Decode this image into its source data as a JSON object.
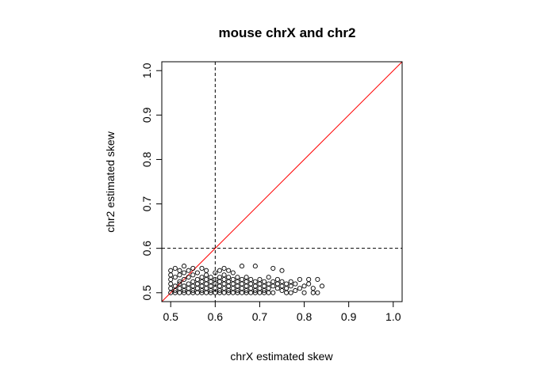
{
  "chart_data": {
    "type": "scatter",
    "title": "mouse chrX and chr2",
    "xlabel": "chrX estimated skew",
    "ylabel": "chr2 estimated skew",
    "xlim": [
      0.48,
      1.02
    ],
    "ylim": [
      0.48,
      1.02
    ],
    "x_ticks": [
      "0.5",
      "0.6",
      "0.7",
      "0.8",
      "0.9",
      "1.0"
    ],
    "y_ticks": [
      "0.5",
      "0.6",
      "0.7",
      "0.8",
      "0.9",
      "1.0"
    ],
    "grid": false,
    "marker": "open-circle",
    "colors": {
      "points": "#000000",
      "diagonal": "#ff0000",
      "reference": "#000000"
    },
    "reference_lines": [
      {
        "orientation": "vertical",
        "value": 0.6,
        "style": "dashed"
      },
      {
        "orientation": "horizontal",
        "value": 0.6,
        "style": "dashed"
      },
      {
        "orientation": "diagonal",
        "slope": 1,
        "intercept": 0,
        "style": "solid",
        "color": "#ff0000"
      }
    ],
    "points": [
      [
        0.5,
        0.5
      ],
      [
        0.5,
        0.51
      ],
      [
        0.5,
        0.52
      ],
      [
        0.5,
        0.53
      ],
      [
        0.5,
        0.54
      ],
      [
        0.5,
        0.55
      ],
      [
        0.51,
        0.5
      ],
      [
        0.51,
        0.505
      ],
      [
        0.51,
        0.515
      ],
      [
        0.51,
        0.535
      ],
      [
        0.51,
        0.555
      ],
      [
        0.52,
        0.5
      ],
      [
        0.52,
        0.51
      ],
      [
        0.52,
        0.52
      ],
      [
        0.52,
        0.525
      ],
      [
        0.52,
        0.54
      ],
      [
        0.52,
        0.55
      ],
      [
        0.53,
        0.5
      ],
      [
        0.53,
        0.505
      ],
      [
        0.53,
        0.515
      ],
      [
        0.53,
        0.53
      ],
      [
        0.53,
        0.545
      ],
      [
        0.53,
        0.56
      ],
      [
        0.54,
        0.5
      ],
      [
        0.54,
        0.51
      ],
      [
        0.54,
        0.52
      ],
      [
        0.54,
        0.535
      ],
      [
        0.54,
        0.55
      ],
      [
        0.55,
        0.5
      ],
      [
        0.55,
        0.505
      ],
      [
        0.55,
        0.515
      ],
      [
        0.55,
        0.525
      ],
      [
        0.55,
        0.54
      ],
      [
        0.55,
        0.555
      ],
      [
        0.56,
        0.5
      ],
      [
        0.56,
        0.51
      ],
      [
        0.56,
        0.52
      ],
      [
        0.56,
        0.53
      ],
      [
        0.56,
        0.545
      ],
      [
        0.57,
        0.5
      ],
      [
        0.57,
        0.505
      ],
      [
        0.57,
        0.515
      ],
      [
        0.57,
        0.525
      ],
      [
        0.57,
        0.535
      ],
      [
        0.57,
        0.555
      ],
      [
        0.58,
        0.5
      ],
      [
        0.58,
        0.51
      ],
      [
        0.58,
        0.52
      ],
      [
        0.58,
        0.53
      ],
      [
        0.58,
        0.54
      ],
      [
        0.58,
        0.55
      ],
      [
        0.59,
        0.5
      ],
      [
        0.59,
        0.505
      ],
      [
        0.59,
        0.515
      ],
      [
        0.59,
        0.525
      ],
      [
        0.59,
        0.535
      ],
      [
        0.6,
        0.5
      ],
      [
        0.6,
        0.51
      ],
      [
        0.6,
        0.52
      ],
      [
        0.6,
        0.53
      ],
      [
        0.6,
        0.545
      ],
      [
        0.61,
        0.5
      ],
      [
        0.61,
        0.505
      ],
      [
        0.61,
        0.515
      ],
      [
        0.61,
        0.525
      ],
      [
        0.61,
        0.535
      ],
      [
        0.61,
        0.55
      ],
      [
        0.62,
        0.5
      ],
      [
        0.62,
        0.51
      ],
      [
        0.62,
        0.52
      ],
      [
        0.62,
        0.53
      ],
      [
        0.62,
        0.54
      ],
      [
        0.62,
        0.555
      ],
      [
        0.63,
        0.5
      ],
      [
        0.63,
        0.505
      ],
      [
        0.63,
        0.515
      ],
      [
        0.63,
        0.525
      ],
      [
        0.63,
        0.535
      ],
      [
        0.63,
        0.55
      ],
      [
        0.64,
        0.5
      ],
      [
        0.64,
        0.51
      ],
      [
        0.64,
        0.52
      ],
      [
        0.64,
        0.53
      ],
      [
        0.64,
        0.545
      ],
      [
        0.65,
        0.5
      ],
      [
        0.65,
        0.505
      ],
      [
        0.65,
        0.515
      ],
      [
        0.65,
        0.525
      ],
      [
        0.65,
        0.535
      ],
      [
        0.66,
        0.5
      ],
      [
        0.66,
        0.51
      ],
      [
        0.66,
        0.52
      ],
      [
        0.66,
        0.53
      ],
      [
        0.66,
        0.56
      ],
      [
        0.67,
        0.5
      ],
      [
        0.67,
        0.505
      ],
      [
        0.67,
        0.515
      ],
      [
        0.67,
        0.525
      ],
      [
        0.67,
        0.535
      ],
      [
        0.68,
        0.5
      ],
      [
        0.68,
        0.51
      ],
      [
        0.68,
        0.52
      ],
      [
        0.68,
        0.53
      ],
      [
        0.69,
        0.5
      ],
      [
        0.69,
        0.505
      ],
      [
        0.69,
        0.515
      ],
      [
        0.69,
        0.525
      ],
      [
        0.69,
        0.56
      ],
      [
        0.7,
        0.5
      ],
      [
        0.7,
        0.51
      ],
      [
        0.7,
        0.52
      ],
      [
        0.7,
        0.53
      ],
      [
        0.71,
        0.5
      ],
      [
        0.71,
        0.505
      ],
      [
        0.71,
        0.515
      ],
      [
        0.71,
        0.525
      ],
      [
        0.72,
        0.5
      ],
      [
        0.72,
        0.51
      ],
      [
        0.72,
        0.52
      ],
      [
        0.72,
        0.535
      ],
      [
        0.73,
        0.5
      ],
      [
        0.73,
        0.515
      ],
      [
        0.73,
        0.525
      ],
      [
        0.73,
        0.555
      ],
      [
        0.74,
        0.51
      ],
      [
        0.74,
        0.52
      ],
      [
        0.74,
        0.53
      ],
      [
        0.75,
        0.505
      ],
      [
        0.75,
        0.515
      ],
      [
        0.75,
        0.525
      ],
      [
        0.75,
        0.55
      ],
      [
        0.76,
        0.5
      ],
      [
        0.76,
        0.51
      ],
      [
        0.76,
        0.52
      ],
      [
        0.77,
        0.5
      ],
      [
        0.77,
        0.515
      ],
      [
        0.77,
        0.525
      ],
      [
        0.78,
        0.505
      ],
      [
        0.78,
        0.52
      ],
      [
        0.79,
        0.51
      ],
      [
        0.79,
        0.53
      ],
      [
        0.8,
        0.5
      ],
      [
        0.8,
        0.515
      ],
      [
        0.81,
        0.52
      ],
      [
        0.81,
        0.53
      ],
      [
        0.82,
        0.51
      ],
      [
        0.82,
        0.5
      ],
      [
        0.83,
        0.5
      ],
      [
        0.83,
        0.53
      ],
      [
        0.84,
        0.515
      ]
    ]
  }
}
